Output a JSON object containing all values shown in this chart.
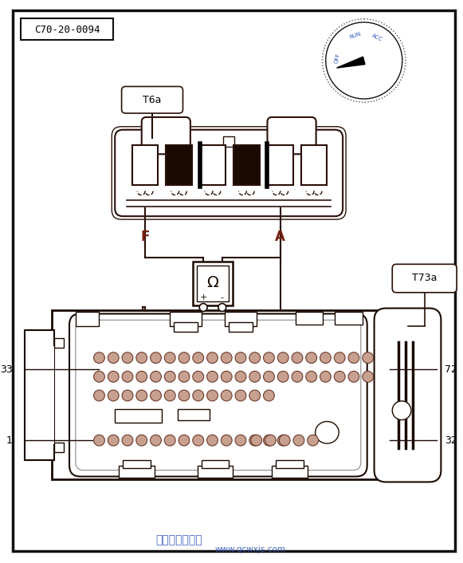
{
  "title_label": "C70-20-0094",
  "connector1_label": "T6a",
  "connector2_label": "T73a",
  "pin_F_label": "F",
  "pin_A_label": "A",
  "ohmmeter_label": "Ω",
  "watermark": "汽车维修技术网",
  "watermark2": "www.qcwxjs.com",
  "bg_color": "#ffffff",
  "line_color": "#2a1008",
  "dark_color": "#1a0a00",
  "pin_fill_color": "#c8a090",
  "border_color": "#111111",
  "label_color_FA": "#7a2010",
  "dial_text_color": "#3355bb",
  "watermark_color": "#3355bb"
}
